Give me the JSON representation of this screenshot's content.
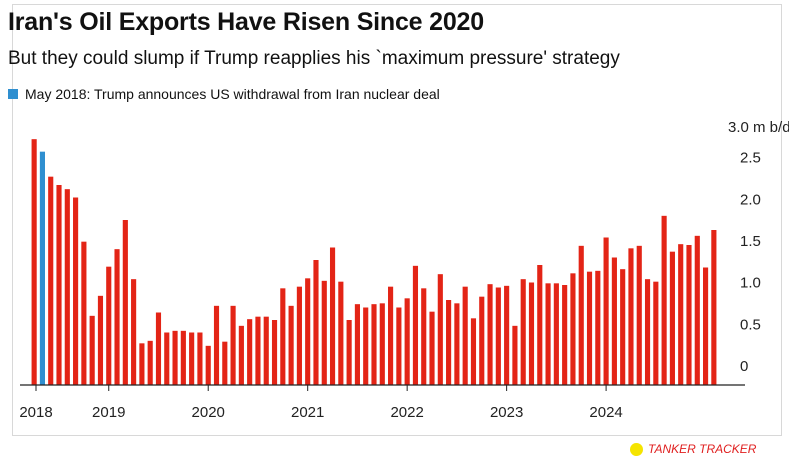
{
  "chart_data": {
    "type": "bar",
    "title": "Iran's Oil Exports Have Risen Since 2020",
    "subtitle": "But they could slump if Trump reapplies his `maximum pressure' strategy",
    "legend": [
      {
        "label": "May 2018: Trump announces US withdrawal from Iran nuclear deal",
        "color": "#2f8fd0"
      }
    ],
    "unit_label": "3.0 m b/d",
    "y_ticks": [
      "0",
      "0.5",
      "1.0",
      "1.5",
      "2.0",
      "2.5"
    ],
    "ylim": [
      0,
      3.0
    ],
    "x_tick_labels": [
      "2018",
      "2019",
      "2020",
      "2021",
      "2022",
      "2023",
      "2024"
    ],
    "start_month": "2018-04",
    "highlight_month": "2018-05",
    "colors": {
      "bar": "#e32416",
      "highlight": "#2f8fd0",
      "axis": "#222222"
    },
    "values": [
      2.95,
      2.8,
      2.5,
      2.4,
      2.35,
      2.25,
      1.72,
      0.83,
      1.07,
      1.42,
      1.63,
      1.98,
      1.27,
      0.5,
      0.53,
      0.87,
      0.63,
      0.65,
      0.65,
      0.63,
      0.63,
      0.47,
      0.95,
      0.52,
      0.95,
      0.71,
      0.79,
      0.82,
      0.82,
      0.78,
      1.16,
      0.95,
      1.18,
      1.28,
      1.5,
      1.25,
      1.65,
      1.24,
      0.78,
      0.97,
      0.93,
      0.97,
      0.98,
      1.18,
      0.93,
      1.04,
      1.43,
      1.16,
      0.88,
      1.33,
      1.02,
      0.98,
      1.18,
      0.8,
      1.06,
      1.21,
      1.17,
      1.19,
      0.71,
      1.27,
      1.23,
      1.44,
      1.22,
      1.22,
      1.2,
      1.34,
      1.67,
      1.36,
      1.37,
      1.77,
      1.53,
      1.39,
      1.64,
      1.67,
      1.27,
      1.24,
      2.03,
      1.6,
      1.69,
      1.68,
      1.79,
      1.41,
      1.86
    ]
  },
  "footer": {
    "brand": "TANKER TRACKER"
  }
}
